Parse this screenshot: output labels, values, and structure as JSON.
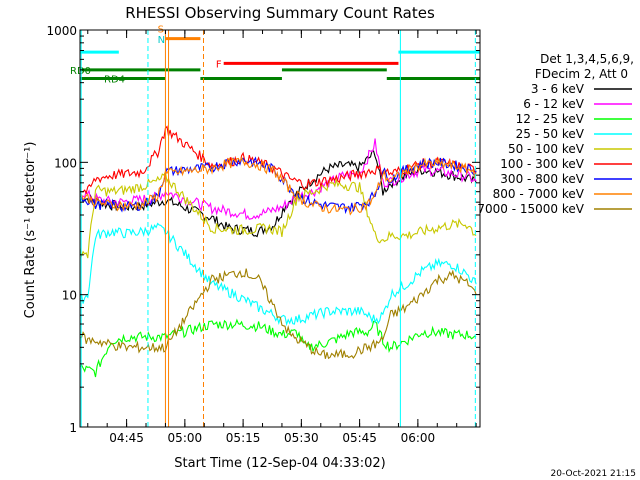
{
  "chart_data": {
    "type": "line",
    "title": "RHESSI Observing Summary Count Rates",
    "xlabel": "Start Time (12-Sep-04 04:33:02)",
    "ylabel": "Count Rate (s⁻¹ detector⁻¹)",
    "yscale": "log",
    "ylim": [
      1,
      1000
    ],
    "xlim_min": [
      0,
      103
    ],
    "x_ticks": [
      {
        "min": 12,
        "label": "04:45"
      },
      {
        "min": 27,
        "label": "05:00"
      },
      {
        "min": 42,
        "label": "05:15"
      },
      {
        "min": 57,
        "label": "05:30"
      },
      {
        "min": 72,
        "label": "05:45"
      },
      {
        "min": 87,
        "label": "06:00"
      }
    ],
    "y_ticks": [
      {
        "value": 1,
        "label": "1"
      },
      {
        "value": 10,
        "label": "10"
      },
      {
        "value": 100,
        "label": "100"
      },
      {
        "value": 1000,
        "label": "1000"
      }
    ],
    "legend_header": [
      "Det 1,3,4,5,6,9,",
      "FDecim 2, Att 0"
    ],
    "series": [
      {
        "name": "3 - 6 keV",
        "color": "#000000",
        "x": [
          0,
          7,
          14,
          20,
          22,
          34,
          38,
          42,
          46,
          50,
          53,
          57,
          60,
          64,
          68,
          72,
          76,
          78,
          80,
          84,
          88,
          92,
          96,
          100,
          102
        ],
        "y": [
          55,
          48,
          46,
          50,
          52,
          38,
          32,
          31,
          30,
          34,
          48,
          62,
          75,
          90,
          95,
          92,
          120,
          60,
          70,
          80,
          88,
          85,
          80,
          75,
          70
        ]
      },
      {
        "name": "6 - 12 keV",
        "color": "#ff00ff",
        "x": [
          0,
          5,
          10,
          15,
          20,
          22,
          34,
          40,
          44,
          48,
          52,
          56,
          60,
          64,
          68,
          72,
          76,
          78,
          80,
          84,
          88,
          92,
          96,
          100,
          102
        ],
        "y": [
          60,
          52,
          50,
          52,
          55,
          60,
          45,
          42,
          40,
          42,
          46,
          55,
          60,
          70,
          80,
          82,
          140,
          70,
          72,
          80,
          88,
          86,
          82,
          78,
          72
        ]
      },
      {
        "name": "12 - 25 keV",
        "color": "#00ff00",
        "x": [
          0,
          4,
          8,
          12,
          16,
          20,
          22,
          34,
          40,
          46,
          52,
          56,
          58,
          62,
          66,
          70,
          74,
          76,
          78,
          80,
          84,
          88,
          92,
          96,
          100,
          102
        ],
        "y": [
          2.8,
          2.6,
          4.5,
          4.8,
          4.8,
          4.8,
          4.8,
          6,
          6,
          5.8,
          5,
          5.2,
          4,
          4.2,
          4.6,
          5.2,
          5.2,
          6,
          4.5,
          4,
          4.5,
          5.2,
          5.2,
          5,
          5,
          4.8
        ]
      },
      {
        "name": "25 - 50 keV",
        "color": "#00ffff",
        "x": [
          0,
          2,
          4,
          8,
          12,
          16,
          20,
          22,
          34,
          40,
          46,
          50,
          52,
          56,
          60,
          64,
          68,
          72,
          76,
          78,
          80,
          84,
          88,
          92,
          96,
          100,
          102
        ],
        "y": [
          9,
          10,
          28,
          30,
          29,
          30,
          32,
          30,
          12,
          10,
          8,
          7,
          6.5,
          6.5,
          7,
          7.5,
          7.5,
          7.5,
          6.5,
          7,
          10,
          12,
          15,
          17,
          17,
          14,
          12
        ]
      },
      {
        "name": "50 - 100 keV",
        "color": "#c8c800",
        "x": [
          0,
          2,
          4,
          8,
          12,
          16,
          20,
          22,
          34,
          40,
          44,
          48,
          52,
          56,
          60,
          64,
          68,
          72,
          76,
          78,
          80,
          84,
          88,
          92,
          96,
          100,
          102
        ],
        "y": [
          22,
          20,
          62,
          60,
          62,
          66,
          72,
          78,
          32,
          31,
          31,
          32,
          30,
          55,
          60,
          68,
          68,
          65,
          28,
          26,
          28,
          28,
          30,
          32,
          34,
          34,
          28
        ]
      },
      {
        "name": "100 - 300 keV",
        "color": "#ff0000",
        "x": [
          0,
          2,
          4,
          8,
          12,
          16,
          20,
          22,
          34,
          38,
          42,
          46,
          50,
          54,
          58,
          62,
          66,
          70,
          74,
          76,
          78,
          80,
          84,
          88,
          92,
          96,
          100,
          102
        ],
        "y": [
          62,
          60,
          75,
          80,
          82,
          85,
          120,
          180,
          95,
          100,
          108,
          100,
          90,
          75,
          68,
          72,
          75,
          80,
          85,
          88,
          88,
          82,
          90,
          98,
          100,
          96,
          90,
          88
        ]
      },
      {
        "name": "300 - 800 keV",
        "color": "#0000ff",
        "x": [
          0,
          2,
          4,
          8,
          12,
          16,
          20,
          22,
          34,
          38,
          42,
          46,
          50,
          54,
          58,
          62,
          66,
          70,
          74,
          76,
          78,
          80,
          84,
          88,
          92,
          96,
          100,
          102
        ],
        "y": [
          55,
          52,
          48,
          48,
          46,
          48,
          55,
          85,
          92,
          100,
          105,
          98,
          88,
          65,
          52,
          48,
          46,
          46,
          50,
          58,
          85,
          75,
          88,
          98,
          100,
          96,
          90,
          86
        ]
      },
      {
        "name": "800 - 7000 keV",
        "color": "#ff8000",
        "x": [
          0,
          2,
          4,
          8,
          12,
          16,
          20,
          22,
          34,
          38,
          42,
          46,
          50,
          54,
          58,
          62,
          66,
          70,
          74,
          76,
          78,
          80,
          84,
          88,
          92,
          96,
          100,
          102
        ],
        "y": [
          56,
          54,
          50,
          48,
          47,
          48,
          56,
          82,
          90,
          98,
          102,
          96,
          86,
          63,
          50,
          46,
          44,
          44,
          48,
          56,
          82,
          72,
          86,
          96,
          98,
          94,
          88,
          84
        ]
      },
      {
        "name": "7000 - 15000 keV",
        "color": "#a08000",
        "x": [
          0,
          2,
          4,
          8,
          12,
          16,
          20,
          22,
          34,
          38,
          42,
          46,
          50,
          54,
          58,
          62,
          66,
          70,
          74,
          76,
          78,
          80,
          84,
          88,
          92,
          96,
          100,
          102
        ],
        "y": [
          5,
          4.5,
          4.5,
          4.2,
          4,
          4,
          4,
          4,
          13,
          14,
          15,
          13,
          8,
          5,
          4.2,
          3.5,
          3.5,
          3.6,
          4,
          4.2,
          4.6,
          7,
          8,
          10,
          13,
          14,
          12,
          10
        ]
      }
    ],
    "flag_bars": [
      {
        "label": "",
        "color": "#00ffff",
        "y": 680,
        "spans": [
          [
            0,
            10
          ],
          [
            82,
            103
          ]
        ]
      },
      {
        "label": "S",
        "color": "#ff8000",
        "y": 860,
        "spans": [
          [
            22,
            31
          ]
        ]
      },
      {
        "label": "F",
        "color": "#ff0000",
        "y": 560,
        "spans": [
          [
            37,
            82
          ]
        ]
      },
      {
        "label": "RD0",
        "color": "#008000",
        "y": 500,
        "spans": [
          [
            0,
            31
          ],
          [
            52,
            79
          ]
        ]
      },
      {
        "label": "RD4",
        "color": "#008000",
        "y": 430,
        "spans": [
          [
            0,
            22
          ],
          [
            31,
            52
          ],
          [
            79,
            103
          ]
        ]
      }
    ],
    "s_n_labels": [
      "S",
      "N"
    ],
    "vlines": [
      {
        "x": 0.3,
        "color": "#00ffff",
        "style": "solid"
      },
      {
        "x": 17.5,
        "color": "#00ffff",
        "style": "dashed"
      },
      {
        "x": 22.0,
        "color": "#ff8000",
        "style": "solid"
      },
      {
        "x": 22.8,
        "color": "#ff8000",
        "style": "solid"
      },
      {
        "x": 31.8,
        "color": "#ff8000",
        "style": "dashed"
      },
      {
        "x": 82.5,
        "color": "#00ffff",
        "style": "solid"
      },
      {
        "x": 101.8,
        "color": "#00ffff",
        "style": "dashed"
      }
    ],
    "footer": "20-Oct-2021 21:15"
  }
}
